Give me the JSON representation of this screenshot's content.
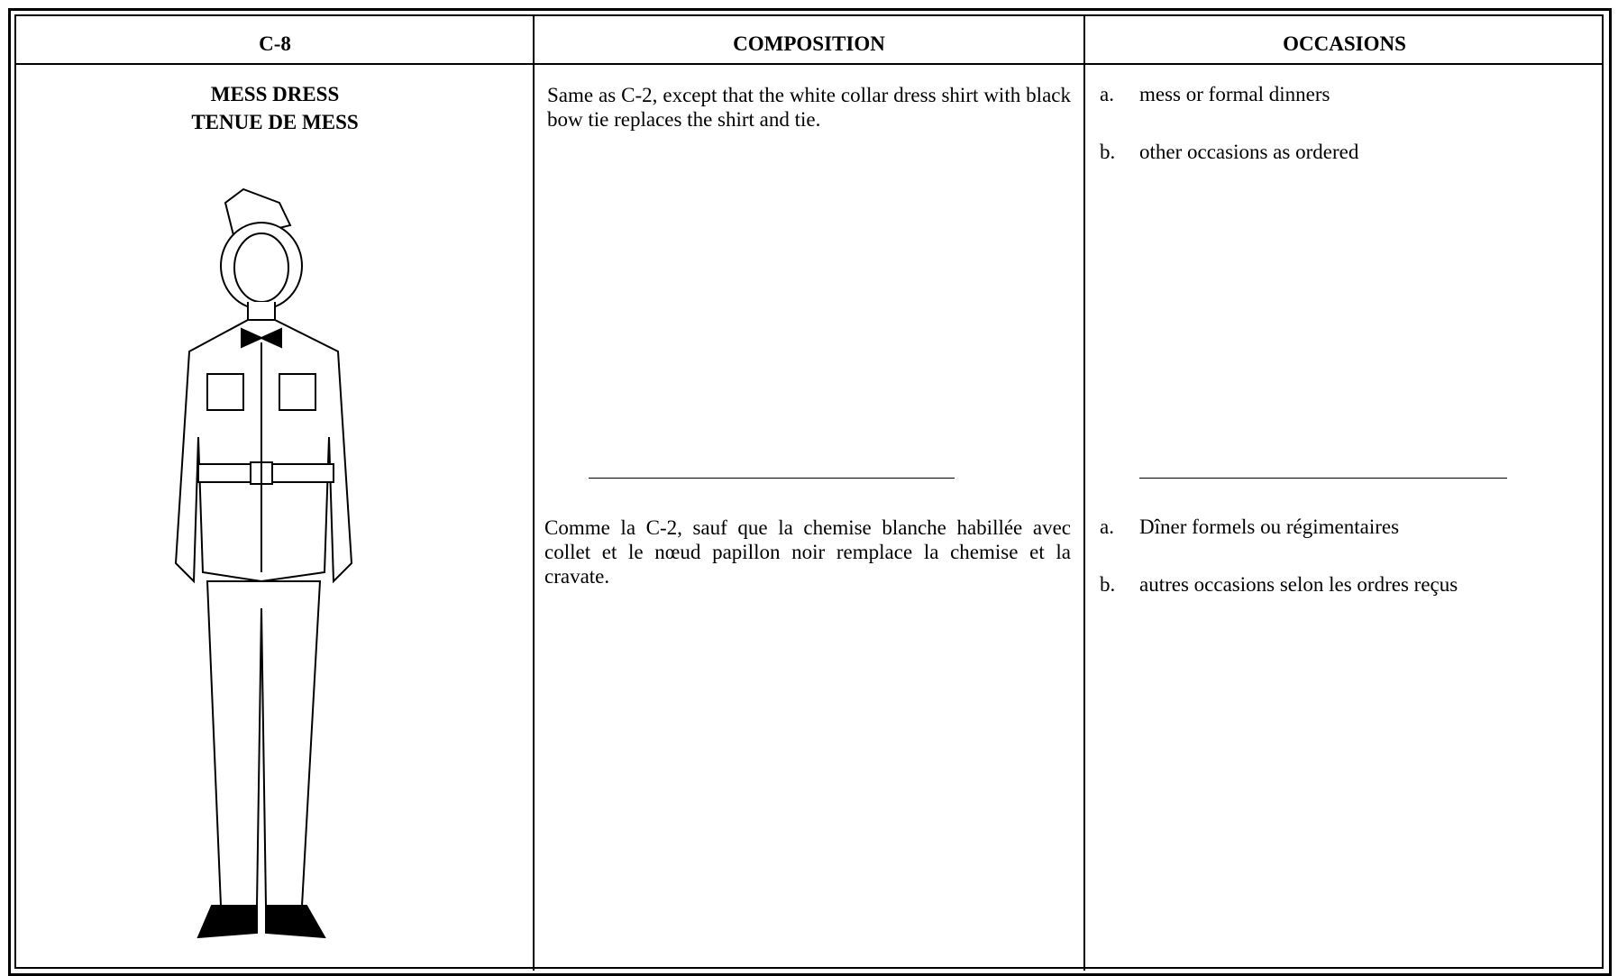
{
  "table": {
    "headers": [
      "C-8",
      "COMPOSITION",
      "OCCASIONS"
    ],
    "title": [
      "MESS DRESS",
      "TENUE DE MESS"
    ],
    "composition_en": "Same as C-2, except that the white collar dress shirt with black bow tie replaces the shirt and tie.",
    "composition_fr": "Comme la C-2, sauf que la chemise blanche habillée avec collet et le nœud papillon noir remplace la chemise et la cravate.",
    "occasions_en": [
      {
        "marker": "a.",
        "text": "mess or formal dinners"
      },
      {
        "marker": "b.",
        "text": "other occasions as ordered"
      }
    ],
    "occasions_fr": [
      {
        "marker": "a.",
        "text": "Dîner formels ou régimentaires"
      },
      {
        "marker": "b.",
        "text": "autres occasions selon les ordres reçus"
      }
    ]
  }
}
